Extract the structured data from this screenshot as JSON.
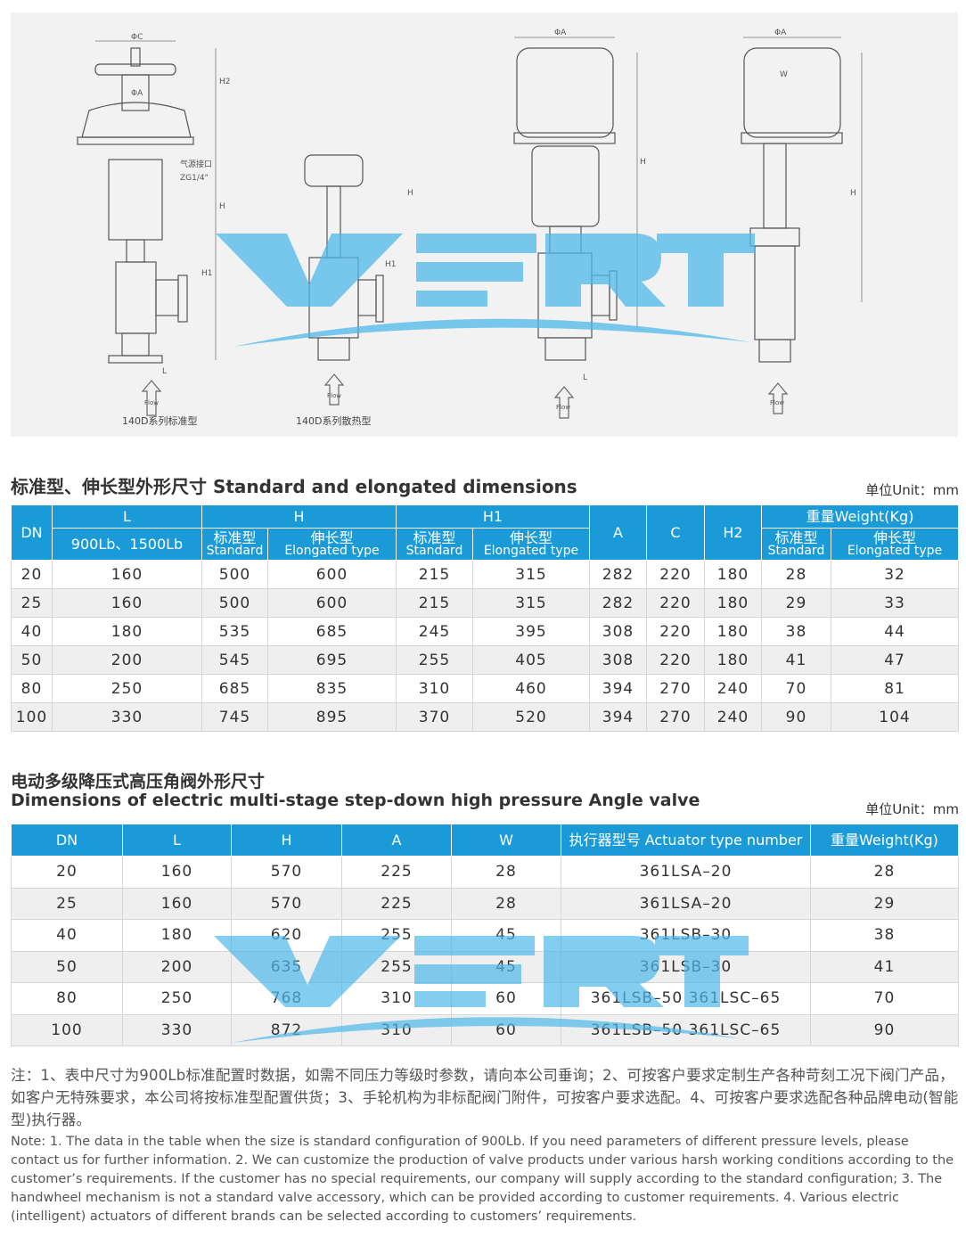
{
  "drawing": {
    "captions": [
      "140D系列标准型",
      "140D系列散热型"
    ],
    "air_port_label": "气源接口",
    "air_port_thread": "ZG1/4\"",
    "dim_labels": {
      "phiC": "ΦC",
      "phiA": "ΦA",
      "H2": "H2",
      "H": "H",
      "H1": "H1",
      "L": "L",
      "W": "W",
      "flow": "Flow"
    },
    "watermark": "VERT",
    "watermark_color": "#4fb8ea"
  },
  "table1": {
    "title": "标准型、伸长型外形尺寸 Standard and elongated dimensions",
    "unit": "单位Unit：mm",
    "header": {
      "DN": "DN",
      "L": "L",
      "L_sub": "900Lb、1500Lb",
      "H": "H",
      "H1": "H1",
      "A": "A",
      "C": "C",
      "H2": "H2",
      "weight": "重量Weight(Kg)",
      "std_cn": "标准型",
      "std_en": "Standard",
      "el_cn": "伸长型",
      "el_en": "Elongated type"
    },
    "rows": [
      [
        "20",
        "160",
        "500",
        "600",
        "215",
        "315",
        "282",
        "220",
        "180",
        "28",
        "32"
      ],
      [
        "25",
        "160",
        "500",
        "600",
        "215",
        "315",
        "282",
        "220",
        "180",
        "29",
        "33"
      ],
      [
        "40",
        "180",
        "535",
        "685",
        "245",
        "395",
        "308",
        "220",
        "180",
        "38",
        "44"
      ],
      [
        "50",
        "200",
        "545",
        "695",
        "255",
        "405",
        "308",
        "220",
        "180",
        "41",
        "47"
      ],
      [
        "80",
        "250",
        "685",
        "835",
        "310",
        "460",
        "394",
        "270",
        "240",
        "70",
        "81"
      ],
      [
        "100",
        "330",
        "745",
        "895",
        "370",
        "520",
        "394",
        "270",
        "240",
        "90",
        "104"
      ]
    ]
  },
  "table2": {
    "title_cn": "电动多级降压式高压角阀外形尺寸",
    "title_en": "Dimensions of electric multi-stage step-down high pressure Angle valve",
    "unit": "单位Unit：mm",
    "header": [
      "DN",
      "L",
      "H",
      "A",
      "W",
      "执行器型号 Actuator type number",
      "重量Weight(Kg)"
    ],
    "rows": [
      [
        "20",
        "160",
        "570",
        "225",
        "28",
        "361LSA–20",
        "28"
      ],
      [
        "25",
        "160",
        "570",
        "225",
        "28",
        "361LSA–20",
        "29"
      ],
      [
        "40",
        "180",
        "620",
        "255",
        "45",
        "361LSB–30",
        "38"
      ],
      [
        "50",
        "200",
        "635",
        "255",
        "45",
        "361LSB–30",
        "41"
      ],
      [
        "80",
        "250",
        "768",
        "310",
        "60",
        "361LSB–50 361LSC–65",
        "70"
      ],
      [
        "100",
        "330",
        "872",
        "310",
        "60",
        "361LSB–50 361LSC–65",
        "90"
      ]
    ]
  },
  "notes": {
    "cn": "注：1、表中尺寸为900Lb标准配置时数据，如需不同压力等级时参数，请向本公司垂询；2、可按客户要求定制生产各种苛刻工况下阀门产品，如客户无特殊要求，本公司将按标准型配置供货；3、手轮机构为非标配阀门附件，可按客户要求选配。4、可按客户要求选配各种品牌电动(智能型)执行器。",
    "en": "Note: 1. The data in the table when the size is standard configuration of 900Lb. If you need parameters of different pressure levels, please contact us for further information. 2. We can customize the production of valve products under various harsh working conditions according to the customer’s requirements. If the customer has no special requirements, our company will supply according to the standard configuration; 3. The handwheel mechanism is not a standard valve accessory, which can be provided according to customer requirements. 4. Various electric (intelligent) actuators of different brands can be selected according to customers’ requirements."
  }
}
